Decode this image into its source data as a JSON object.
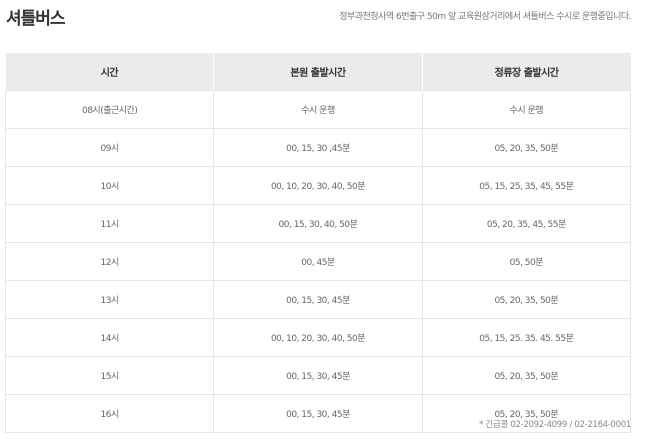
{
  "title": "셔틀버스",
  "notice": "정부과천청사역 6번출구 50m 앞 교육원삼거리에서 셔틀버스 수시로 운행중입니다.",
  "table": {
    "headers": [
      "시간",
      "본원 출발시간",
      "정류장 출발시간"
    ],
    "rows": [
      [
        "08시(출근시간)",
        "수시 운행",
        "수시 운행"
      ],
      [
        "09시",
        "00, 15, 30 ,45분",
        "05, 20, 35, 50분"
      ],
      [
        "10시",
        "00, 10, 20, 30, 40, 50분",
        "05, 15, 25, 35, 45, 55분"
      ],
      [
        "11시",
        "00, 15, 30, 40, 50분",
        "05, 20, 35, 45, 55분"
      ],
      [
        "12시",
        "00, 45분",
        "05, 50분"
      ],
      [
        "13시",
        "00, 15, 30, 45분",
        "05, 20, 35, 50분"
      ],
      [
        "14시",
        "00, 10, 20, 30, 40, 50분",
        "05, 15, 25. 35. 45. 55분"
      ],
      [
        "15시",
        "00, 15, 30, 45분",
        "05, 20, 35, 50분"
      ],
      [
        "16시",
        "00, 15, 30, 45분",
        "05, 20, 35, 50분"
      ]
    ]
  },
  "footer": "* 긴급콜 02-2092-4099 / 02-2164-0001"
}
